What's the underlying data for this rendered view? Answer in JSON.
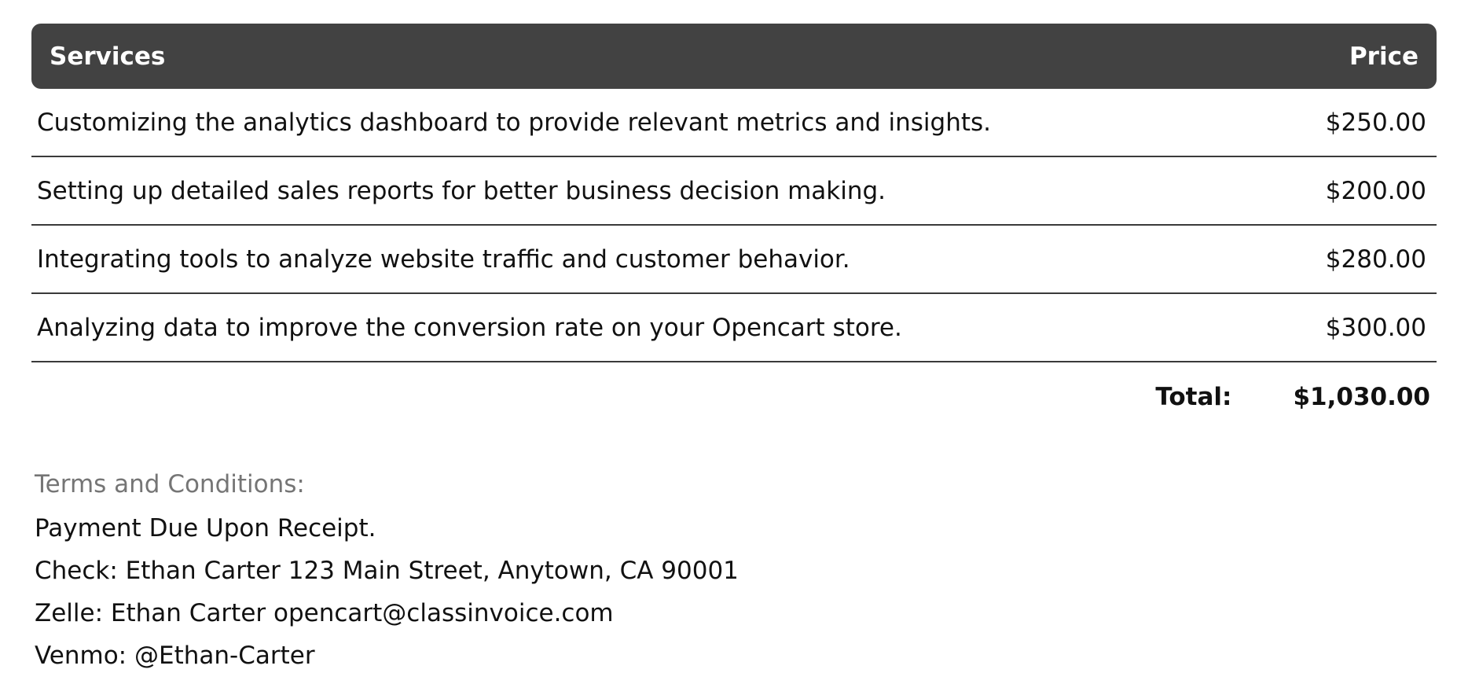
{
  "table": {
    "header": {
      "services_label": "Services",
      "price_label": "Price"
    },
    "rows": [
      {
        "description": "Customizing the analytics dashboard to provide relevant metrics and insights.",
        "price": "$250.00"
      },
      {
        "description": "Setting up detailed sales reports for better business decision making.",
        "price": "$200.00"
      },
      {
        "description": "Integrating tools to analyze website traffic and customer behavior.",
        "price": "$280.00"
      },
      {
        "description": "Analyzing data to improve the conversion rate on your Opencart store.",
        "price": "$300.00"
      }
    ],
    "total_label": "Total:",
    "total_value": "$1,030.00"
  },
  "terms": {
    "heading": "Terms and Conditions:",
    "lines": [
      "Payment Due Upon Receipt.",
      "Check: Ethan Carter 123 Main Street, Anytown, CA 90001",
      "Zelle: Ethan Carter opencart@classinvoice.com",
      "Venmo: @Ethan-Carter"
    ]
  },
  "colors": {
    "header_bg": "#424242",
    "header_text": "#ffffff",
    "row_border": "#3a3a3a",
    "body_text": "#111111",
    "terms_heading": "#757575"
  }
}
